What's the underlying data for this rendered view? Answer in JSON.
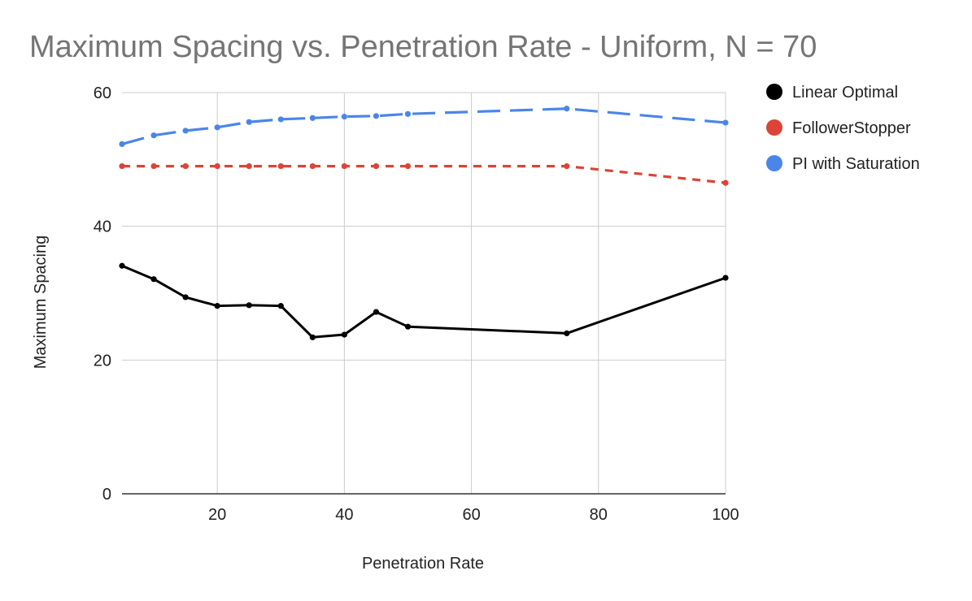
{
  "chart_data": {
    "type": "line",
    "title": "Maximum Spacing vs. Penetration Rate - Uniform, N = 70",
    "xlabel": "Penetration Rate",
    "ylabel": "Maximum Spacing",
    "xlim": [
      5,
      100
    ],
    "ylim": [
      0,
      60
    ],
    "xticks": [
      20,
      40,
      60,
      80,
      100
    ],
    "yticks": [
      0,
      20,
      40,
      60
    ],
    "grid": true,
    "legend_position": "right",
    "series": [
      {
        "name": "Linear Optimal",
        "color": "#000000",
        "style": "solid",
        "x": [
          5,
          10,
          15,
          20,
          25,
          30,
          35,
          40,
          45,
          50,
          75,
          100
        ],
        "y": [
          34.1,
          32.1,
          29.4,
          28.1,
          28.2,
          28.1,
          23.4,
          23.8,
          27.2,
          25.0,
          24.0,
          32.3
        ]
      },
      {
        "name": "FollowerStopper",
        "color": "#db4437",
        "style": "short-dash",
        "x": [
          5,
          10,
          15,
          20,
          25,
          30,
          35,
          40,
          45,
          50,
          75,
          100
        ],
        "y": [
          49.0,
          49.0,
          49.0,
          49.0,
          49.0,
          49.0,
          49.0,
          49.0,
          49.0,
          49.0,
          49.0,
          46.5
        ]
      },
      {
        "name": "PI with Saturation",
        "color": "#4a86e8",
        "style": "long-dash",
        "x": [
          5,
          10,
          15,
          20,
          25,
          30,
          35,
          40,
          45,
          50,
          75,
          100
        ],
        "y": [
          52.3,
          53.6,
          54.3,
          54.8,
          55.6,
          56.0,
          56.2,
          56.4,
          56.5,
          56.8,
          57.6,
          55.5
        ]
      }
    ]
  }
}
